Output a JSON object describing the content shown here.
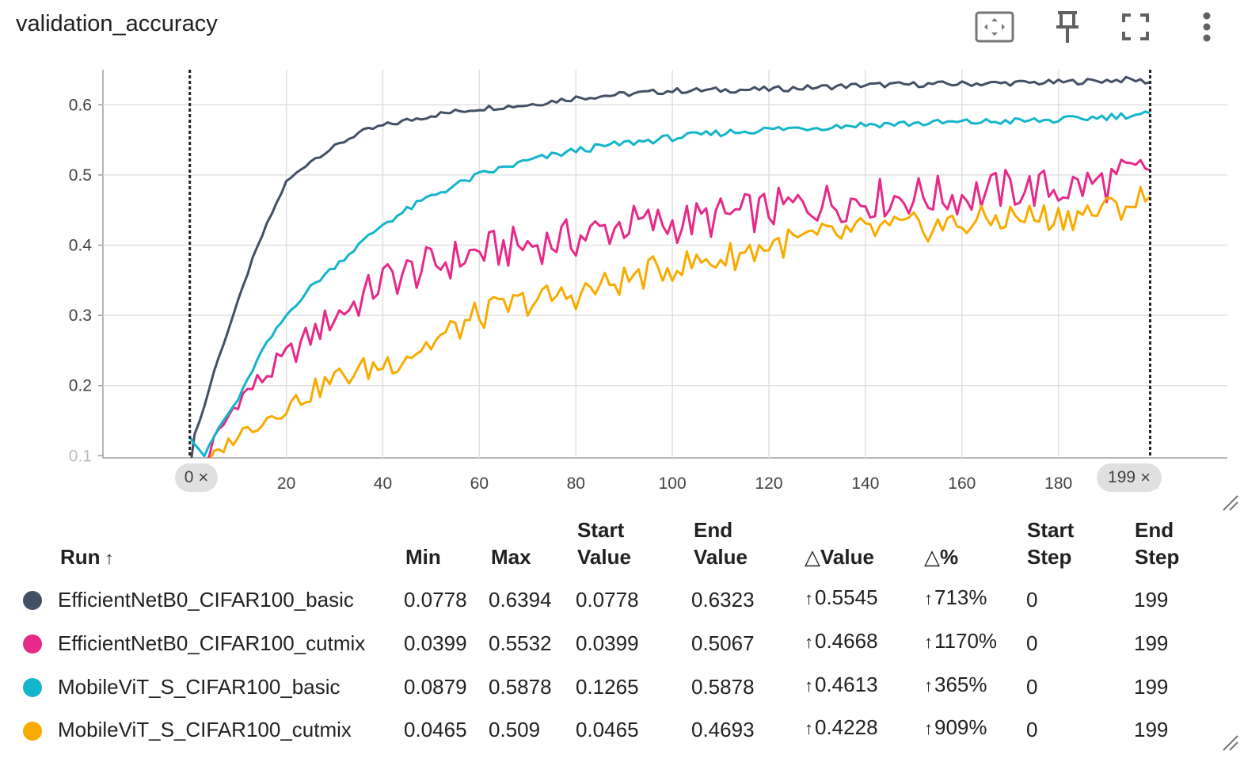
{
  "card": {
    "title": "validation_accuracy"
  },
  "toolbar": [
    {
      "name": "fit-domain-button",
      "icon": "fit-domain-icon"
    },
    {
      "name": "pin-button",
      "icon": "pin-icon"
    },
    {
      "name": "fullscreen-button",
      "icon": "fullscreen-icon"
    },
    {
      "name": "more-options-button",
      "icon": "more-vert-icon"
    }
  ],
  "chart_data": {
    "type": "line",
    "title": "validation_accuracy",
    "xlabel": "",
    "ylabel": "",
    "xlim": [
      -18,
      215
    ],
    "ylim": [
      0.097,
      0.65
    ],
    "x_ticks": [
      "0",
      "20",
      "40",
      "60",
      "80",
      "100",
      "120",
      "140",
      "160",
      "180",
      "2"
    ],
    "y_ticks": [
      "0.1",
      "0.2",
      "0.3",
      "0.4",
      "0.5",
      "0.6"
    ],
    "step_range": {
      "start": "0",
      "end": "199",
      "close": "×"
    },
    "grid": true,
    "series": [
      {
        "name": "EfficientNetB0_CIFAR100_basic",
        "color": "#425066",
        "keypoints": [
          [
            0,
            0.0778
          ],
          [
            1,
            0.13
          ],
          [
            3,
            0.17
          ],
          [
            5,
            0.22
          ],
          [
            8,
            0.28
          ],
          [
            10,
            0.32
          ],
          [
            13,
            0.38
          ],
          [
            16,
            0.43
          ],
          [
            20,
            0.49
          ],
          [
            25,
            0.52
          ],
          [
            30,
            0.54
          ],
          [
            35,
            0.56
          ],
          [
            40,
            0.57
          ],
          [
            50,
            0.585
          ],
          [
            60,
            0.595
          ],
          [
            70,
            0.6
          ],
          [
            80,
            0.61
          ],
          [
            90,
            0.615
          ],
          [
            100,
            0.62
          ],
          [
            120,
            0.622
          ],
          [
            140,
            0.628
          ],
          [
            160,
            0.63
          ],
          [
            180,
            0.632
          ],
          [
            195,
            0.636
          ],
          [
            199,
            0.6323
          ]
        ]
      },
      {
        "name": "EfficientNetB0_CIFAR100_cutmix",
        "color": "#e7298a",
        "keypoints": [
          [
            0,
            0.0399
          ],
          [
            5,
            0.12
          ],
          [
            10,
            0.18
          ],
          [
            15,
            0.21
          ],
          [
            20,
            0.24
          ],
          [
            25,
            0.27
          ],
          [
            30,
            0.3
          ],
          [
            35,
            0.32
          ],
          [
            40,
            0.35
          ],
          [
            50,
            0.37
          ],
          [
            60,
            0.39
          ],
          [
            70,
            0.4
          ],
          [
            80,
            0.41
          ],
          [
            90,
            0.43
          ],
          [
            100,
            0.43
          ],
          [
            110,
            0.44
          ],
          [
            120,
            0.45
          ],
          [
            130,
            0.46
          ],
          [
            140,
            0.465
          ],
          [
            150,
            0.47
          ],
          [
            160,
            0.47
          ],
          [
            170,
            0.48
          ],
          [
            180,
            0.48
          ],
          [
            190,
            0.49
          ],
          [
            199,
            0.5067
          ]
        ]
      },
      {
        "name": "MobileViT_S_CIFAR100_basic",
        "color": "#12b5cb",
        "keypoints": [
          [
            0,
            0.1265
          ],
          [
            3,
            0.1
          ],
          [
            6,
            0.14
          ],
          [
            10,
            0.18
          ],
          [
            15,
            0.25
          ],
          [
            20,
            0.3
          ],
          [
            25,
            0.34
          ],
          [
            30,
            0.37
          ],
          [
            35,
            0.4
          ],
          [
            40,
            0.43
          ],
          [
            50,
            0.47
          ],
          [
            60,
            0.5
          ],
          [
            70,
            0.52
          ],
          [
            80,
            0.535
          ],
          [
            90,
            0.545
          ],
          [
            100,
            0.553
          ],
          [
            110,
            0.56
          ],
          [
            120,
            0.565
          ],
          [
            130,
            0.568
          ],
          [
            140,
            0.572
          ],
          [
            160,
            0.575
          ],
          [
            180,
            0.578
          ],
          [
            199,
            0.5878
          ]
        ]
      },
      {
        "name": "MobileViT_S_CIFAR100_cutmix",
        "color": "#f9ab00",
        "keypoints": [
          [
            0,
            0.0465
          ],
          [
            5,
            0.1
          ],
          [
            10,
            0.13
          ],
          [
            15,
            0.15
          ],
          [
            20,
            0.17
          ],
          [
            25,
            0.19
          ],
          [
            30,
            0.21
          ],
          [
            40,
            0.23
          ],
          [
            50,
            0.26
          ],
          [
            60,
            0.3
          ],
          [
            70,
            0.32
          ],
          [
            80,
            0.33
          ],
          [
            90,
            0.35
          ],
          [
            100,
            0.37
          ],
          [
            110,
            0.38
          ],
          [
            120,
            0.4
          ],
          [
            130,
            0.41
          ],
          [
            140,
            0.42
          ],
          [
            150,
            0.425
          ],
          [
            160,
            0.43
          ],
          [
            170,
            0.44
          ],
          [
            180,
            0.44
          ],
          [
            190,
            0.45
          ],
          [
            199,
            0.4693
          ]
        ]
      }
    ]
  },
  "table": {
    "headers": [
      {
        "label": "Run",
        "sort_arrow": "↑"
      },
      {
        "label": "Min"
      },
      {
        "label": "Max"
      },
      {
        "label_line1": "Start",
        "label_line2": "Value"
      },
      {
        "label_line1": "End",
        "label_line2": "Value"
      },
      {
        "label": "△Value"
      },
      {
        "label": "△%"
      },
      {
        "label_line1": "Start",
        "label_line2": "Step"
      },
      {
        "label_line1": "End",
        "label_line2": "Step"
      }
    ],
    "rows": [
      {
        "color": "#425066",
        "run": "EfficientNetB0_CIFAR100_basic",
        "min": "0.0778",
        "max": "0.6394",
        "start_value": "0.0778",
        "end_value": "0.6323",
        "delta_value": "0.5545",
        "delta_pct": "713%",
        "start_step": "0",
        "end_step": "199"
      },
      {
        "color": "#e7298a",
        "run": "EfficientNetB0_CIFAR100_cutmix",
        "min": "0.0399",
        "max": "0.5532",
        "start_value": "0.0399",
        "end_value": "0.5067",
        "delta_value": "0.4668",
        "delta_pct": "1170%",
        "start_step": "0",
        "end_step": "199"
      },
      {
        "color": "#12b5cb",
        "run": "MobileViT_S_CIFAR100_basic",
        "min": "0.0879",
        "max": "0.5878",
        "start_value": "0.1265",
        "end_value": "0.5878",
        "delta_value": "0.4613",
        "delta_pct": "365%",
        "start_step": "0",
        "end_step": "199"
      },
      {
        "color": "#f9ab00",
        "run": "MobileViT_S_CIFAR100_cutmix",
        "min": "0.0465",
        "max": "0.509",
        "start_value": "0.0465",
        "end_value": "0.4693",
        "delta_value": "0.4228",
        "delta_pct": "909%",
        "start_step": "0",
        "end_step": "199"
      }
    ],
    "up_arrow": "↑"
  }
}
